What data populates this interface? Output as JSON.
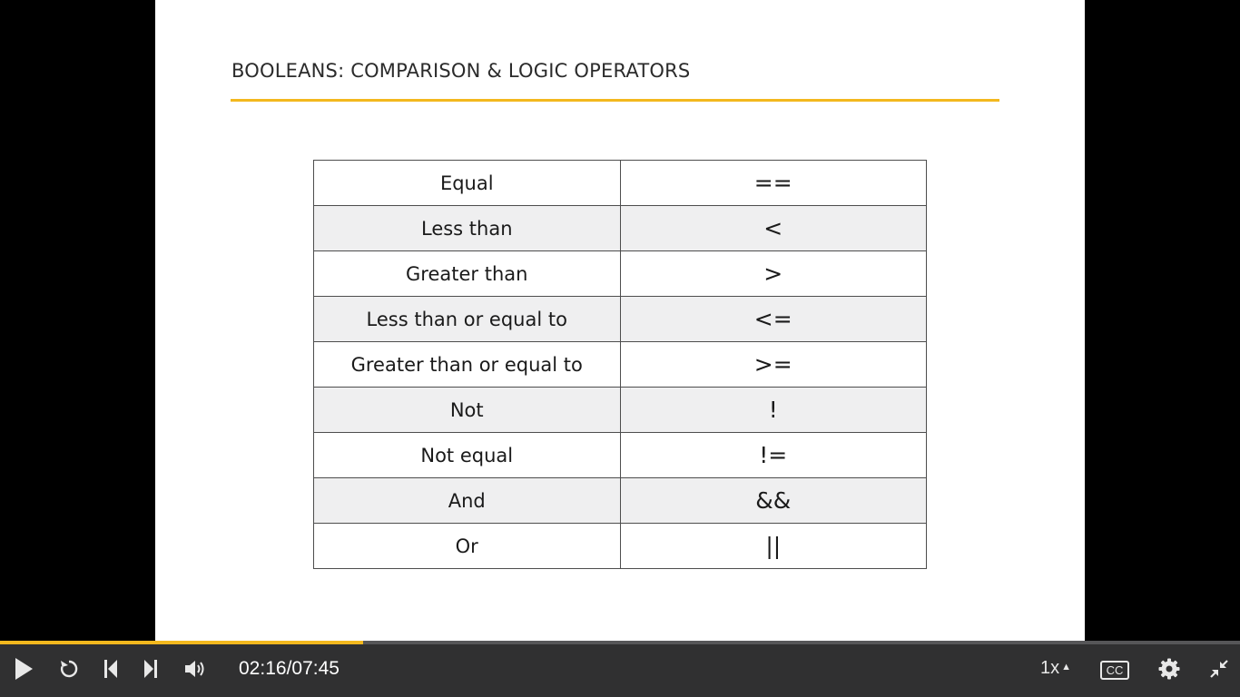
{
  "slide": {
    "title": "BOOLEANS: COMPARISON & LOGIC OPERATORS",
    "accent_color": "#f3b81e",
    "rows": [
      {
        "name": "Equal",
        "symbol": "=="
      },
      {
        "name": "Less than",
        "symbol": "<"
      },
      {
        "name": "Greater than",
        "symbol": ">"
      },
      {
        "name": "Less than or equal to",
        "symbol": "<="
      },
      {
        "name": "Greater than or equal to",
        "symbol": ">="
      },
      {
        "name": "Not",
        "symbol": "!"
      },
      {
        "name": "Not equal",
        "symbol": "!="
      },
      {
        "name": "And",
        "symbol": "&&"
      },
      {
        "name": "Or",
        "symbol": "||"
      }
    ]
  },
  "player": {
    "progress_fraction": 0.293,
    "current_time": "02:16",
    "separator": "/",
    "duration": "07:45",
    "speed": "1x",
    "captions_label": "CC",
    "icons": [
      "play-icon",
      "replay-icon",
      "skip-back-icon",
      "skip-forward-icon",
      "volume-icon",
      "settings-icon",
      "exit-fullscreen-icon"
    ]
  }
}
